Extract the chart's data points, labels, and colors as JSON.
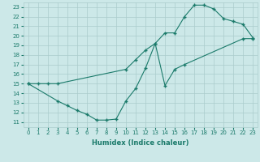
{
  "xlabel": "Humidex (Indice chaleur)",
  "bg_color": "#cce8e8",
  "grid_color": "#aacccc",
  "line_color": "#1a7a6a",
  "marker": "+",
  "xlim": [
    -0.5,
    23.5
  ],
  "ylim": [
    10.5,
    23.5
  ],
  "xticks": [
    0,
    1,
    2,
    3,
    4,
    5,
    6,
    7,
    8,
    9,
    10,
    11,
    12,
    13,
    14,
    15,
    16,
    17,
    18,
    19,
    20,
    21,
    22,
    23
  ],
  "yticks": [
    11,
    12,
    13,
    14,
    15,
    16,
    17,
    18,
    19,
    20,
    21,
    22,
    23
  ],
  "line1_x": [
    0,
    1,
    2,
    3,
    10,
    11,
    12,
    13,
    14,
    15,
    16,
    17,
    18,
    19,
    20,
    21,
    22,
    23
  ],
  "line1_y": [
    15,
    15,
    15,
    15,
    16.5,
    17.5,
    18.5,
    19.2,
    20.3,
    20.3,
    22.0,
    23.2,
    23.2,
    22.8,
    21.8,
    21.5,
    21.2,
    19.8
  ],
  "line2_x": [
    0,
    3,
    4,
    5,
    6,
    7,
    8,
    9,
    10,
    11,
    12,
    13,
    14,
    15,
    16,
    22,
    23
  ],
  "line2_y": [
    15,
    13.2,
    12.7,
    12.2,
    11.8,
    11.2,
    11.2,
    11.3,
    13.2,
    14.5,
    16.6,
    19.2,
    14.8,
    16.5,
    17.0,
    19.7,
    19.7
  ],
  "markersize": 3,
  "linewidth": 0.8,
  "xlabel_fontsize": 6,
  "tick_fontsize": 5
}
